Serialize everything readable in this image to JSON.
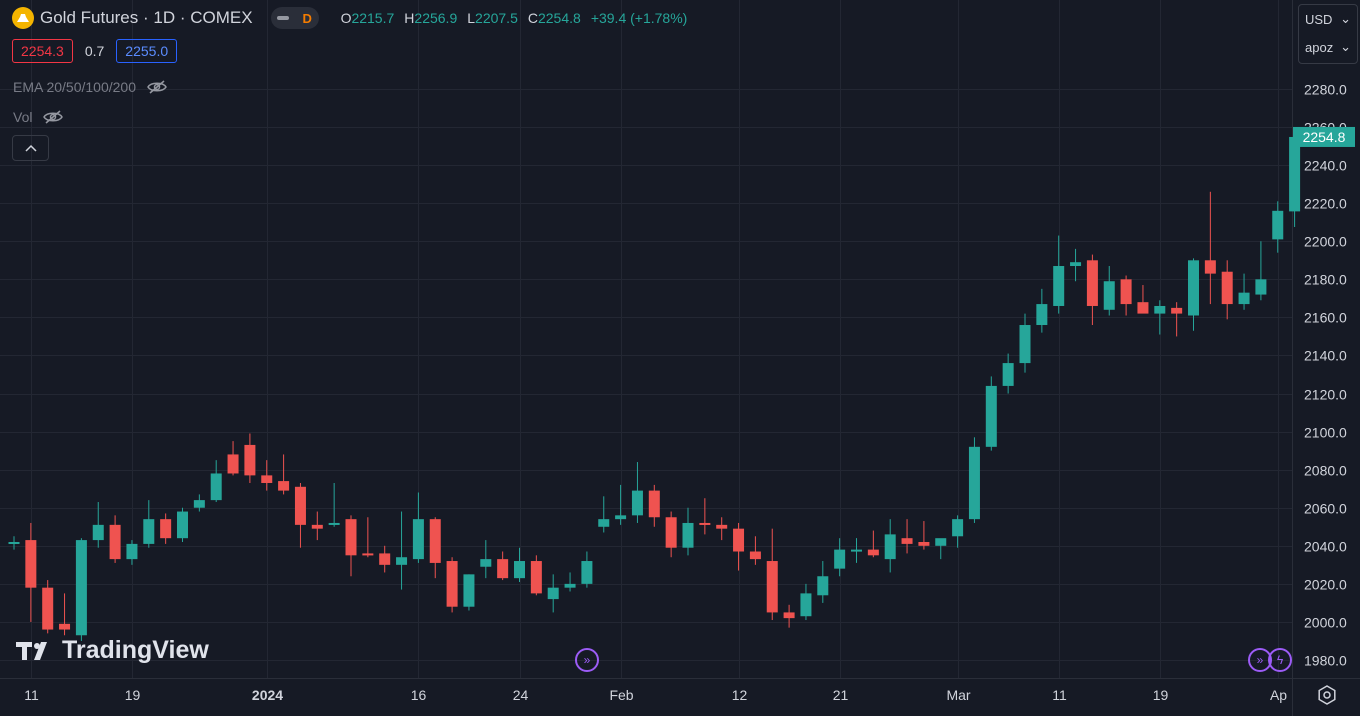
{
  "header": {
    "symbol_title": "Gold Futures · 1D · COMEX",
    "market_status": "D",
    "ohlc": {
      "o_label": "O",
      "o": "2215.7",
      "h_label": "H",
      "h": "2256.9",
      "l_label": "L",
      "l": "2207.5",
      "c_label": "C",
      "c": "2254.8",
      "change": "+39.4 (+1.78%)"
    }
  },
  "quote": {
    "bid": "2254.3",
    "spread": "0.7",
    "ask": "2255.0"
  },
  "indicators": [
    {
      "label": "EMA 20/50/100/200",
      "icon": "eye-off-icon"
    },
    {
      "label": "Vol",
      "icon": "eye-off-icon"
    }
  ],
  "price_scale": {
    "currency": "USD",
    "unit": "apoz"
  },
  "watermark": "TradingView",
  "colors": {
    "up": "#26a69a",
    "down": "#ef5350",
    "background": "#161a25",
    "event": "#9c5cf6"
  },
  "chart_data": {
    "type": "candlestick",
    "title": "Gold Futures · 1D · COMEX",
    "ylim": [
      1970,
      2290
    ],
    "yticks": [
      1980.0,
      2000.0,
      2020.0,
      2040.0,
      2060.0,
      2080.0,
      2100.0,
      2120.0,
      2140.0,
      2160.0,
      2180.0,
      2200.0,
      2220.0,
      2240.0,
      2260.0,
      2280.0
    ],
    "xtick_labels": [
      {
        "label": "11",
        "bar": 1
      },
      {
        "label": "19",
        "bar": 7
      },
      {
        "label": "2024",
        "bar": 15
      },
      {
        "label": "16",
        "bar": 24
      },
      {
        "label": "24",
        "bar": 30
      },
      {
        "label": "Feb",
        "bar": 36
      },
      {
        "label": "12",
        "bar": 43
      },
      {
        "label": "21",
        "bar": 49
      },
      {
        "label": "Mar",
        "bar": 56
      },
      {
        "label": "11",
        "bar": 62
      },
      {
        "label": "19",
        "bar": 68
      },
      {
        "label": "Ap",
        "bar": 75
      }
    ],
    "last_price": 2254.8,
    "candles": [
      {
        "o": 2042,
        "h": 2045,
        "l": 2038,
        "c": 2042
      },
      {
        "o": 2043,
        "h": 2052,
        "l": 2000,
        "c": 2018
      },
      {
        "o": 2018,
        "h": 2022,
        "l": 1994,
        "c": 1996
      },
      {
        "o": 1999,
        "h": 2015,
        "l": 1993,
        "c": 1996
      },
      {
        "o": 1993,
        "h": 2044,
        "l": 1990,
        "c": 2043
      },
      {
        "o": 2043,
        "h": 2063,
        "l": 2039,
        "c": 2051
      },
      {
        "o": 2051,
        "h": 2056,
        "l": 2031,
        "c": 2033
      },
      {
        "o": 2033,
        "h": 2043,
        "l": 2030,
        "c": 2041
      },
      {
        "o": 2041,
        "h": 2064,
        "l": 2039,
        "c": 2054
      },
      {
        "o": 2054,
        "h": 2057,
        "l": 2041,
        "c": 2044
      },
      {
        "o": 2044,
        "h": 2060,
        "l": 2042,
        "c": 2058
      },
      {
        "o": 2060,
        "h": 2067,
        "l": 2058,
        "c": 2064
      },
      {
        "o": 2064,
        "h": 2085,
        "l": 2063,
        "c": 2078
      },
      {
        "o": 2088,
        "h": 2095,
        "l": 2077,
        "c": 2078
      },
      {
        "o": 2093,
        "h": 2099,
        "l": 2073,
        "c": 2077
      },
      {
        "o": 2077,
        "h": 2085,
        "l": 2069,
        "c": 2073
      },
      {
        "o": 2074,
        "h": 2088,
        "l": 2067,
        "c": 2069
      },
      {
        "o": 2071,
        "h": 2073,
        "l": 2039,
        "c": 2051
      },
      {
        "o": 2051,
        "h": 2058,
        "l": 2043,
        "c": 2049
      },
      {
        "o": 2052,
        "h": 2073,
        "l": 2050,
        "c": 2052
      },
      {
        "o": 2054,
        "h": 2056,
        "l": 2024,
        "c": 2035
      },
      {
        "o": 2036,
        "h": 2055,
        "l": 2034,
        "c": 2035
      },
      {
        "o": 2036,
        "h": 2040,
        "l": 2026,
        "c": 2030
      },
      {
        "o": 2030,
        "h": 2058,
        "l": 2017,
        "c": 2034
      },
      {
        "o": 2033,
        "h": 2068,
        "l": 2031,
        "c": 2054
      },
      {
        "o": 2054,
        "h": 2055,
        "l": 2023,
        "c": 2031
      },
      {
        "o": 2032,
        "h": 2034,
        "l": 2005,
        "c": 2008
      },
      {
        "o": 2008,
        "h": 2025,
        "l": 2006,
        "c": 2025
      },
      {
        "o": 2029,
        "h": 2043,
        "l": 2023,
        "c": 2033
      },
      {
        "o": 2033,
        "h": 2037,
        "l": 2022,
        "c": 2023
      },
      {
        "o": 2023,
        "h": 2039,
        "l": 2021,
        "c": 2032
      },
      {
        "o": 2032,
        "h": 2035,
        "l": 2014,
        "c": 2015
      },
      {
        "o": 2012,
        "h": 2025,
        "l": 2005,
        "c": 2018
      },
      {
        "o": 2018,
        "h": 2026,
        "l": 2016,
        "c": 2020
      },
      {
        "o": 2020,
        "h": 2037,
        "l": 2018,
        "c": 2032
      },
      {
        "o": 2050,
        "h": 2066,
        "l": 2047,
        "c": 2054
      },
      {
        "o": 2054,
        "h": 2072,
        "l": 2051,
        "c": 2056
      },
      {
        "o": 2056,
        "h": 2084,
        "l": 2052,
        "c": 2069
      },
      {
        "o": 2069,
        "h": 2072,
        "l": 2050,
        "c": 2055
      },
      {
        "o": 2055,
        "h": 2058,
        "l": 2034,
        "c": 2039
      },
      {
        "o": 2039,
        "h": 2060,
        "l": 2035,
        "c": 2052
      },
      {
        "o": 2052,
        "h": 2065,
        "l": 2046,
        "c": 2051
      },
      {
        "o": 2051,
        "h": 2055,
        "l": 2043,
        "c": 2049
      },
      {
        "o": 2049,
        "h": 2052,
        "l": 2027,
        "c": 2037
      },
      {
        "o": 2037,
        "h": 2045,
        "l": 2030,
        "c": 2033
      },
      {
        "o": 2032,
        "h": 2049,
        "l": 2001,
        "c": 2005
      },
      {
        "o": 2005,
        "h": 2009,
        "l": 1997,
        "c": 2002
      },
      {
        "o": 2003,
        "h": 2020,
        "l": 2001,
        "c": 2015
      },
      {
        "o": 2014,
        "h": 2032,
        "l": 2010,
        "c": 2024
      },
      {
        "o": 2028,
        "h": 2044,
        "l": 2024,
        "c": 2038
      },
      {
        "o": 2037,
        "h": 2044,
        "l": 2031,
        "c": 2038
      },
      {
        "o": 2038,
        "h": 2048,
        "l": 2034,
        "c": 2035
      },
      {
        "o": 2033,
        "h": 2054,
        "l": 2026,
        "c": 2046
      },
      {
        "o": 2044,
        "h": 2054,
        "l": 2036,
        "c": 2041
      },
      {
        "o": 2042,
        "h": 2053,
        "l": 2038,
        "c": 2040
      },
      {
        "o": 2040,
        "h": 2042,
        "l": 2033,
        "c": 2044
      },
      {
        "o": 2045,
        "h": 2056,
        "l": 2039,
        "c": 2054
      },
      {
        "o": 2054,
        "h": 2097,
        "l": 2052,
        "c": 2092
      },
      {
        "o": 2092,
        "h": 2129,
        "l": 2090,
        "c": 2124
      },
      {
        "o": 2124,
        "h": 2141,
        "l": 2120,
        "c": 2136
      },
      {
        "o": 2136,
        "h": 2162,
        "l": 2131,
        "c": 2156
      },
      {
        "o": 2156,
        "h": 2175,
        "l": 2152,
        "c": 2167
      },
      {
        "o": 2166,
        "h": 2203,
        "l": 2162,
        "c": 2187
      },
      {
        "o": 2187,
        "h": 2196,
        "l": 2179,
        "c": 2189
      },
      {
        "o": 2190,
        "h": 2193,
        "l": 2156,
        "c": 2166
      },
      {
        "o": 2164,
        "h": 2187,
        "l": 2161,
        "c": 2179
      },
      {
        "o": 2180,
        "h": 2182,
        "l": 2161,
        "c": 2167
      },
      {
        "o": 2168,
        "h": 2177,
        "l": 2164,
        "c": 2162
      },
      {
        "o": 2162,
        "h": 2169,
        "l": 2151,
        "c": 2166
      },
      {
        "o": 2165,
        "h": 2168,
        "l": 2150,
        "c": 2162
      },
      {
        "o": 2161,
        "h": 2191,
        "l": 2153,
        "c": 2190
      },
      {
        "o": 2190,
        "h": 2226,
        "l": 2167,
        "c": 2183
      },
      {
        "o": 2184,
        "h": 2190,
        "l": 2159,
        "c": 2167
      },
      {
        "o": 2167,
        "h": 2183,
        "l": 2164,
        "c": 2173
      },
      {
        "o": 2172,
        "h": 2200,
        "l": 2169,
        "c": 2180
      },
      {
        "o": 2201,
        "h": 2221,
        "l": 2194,
        "c": 2216
      },
      {
        "o": 2215.7,
        "h": 2256.9,
        "l": 2207.5,
        "c": 2254.8
      }
    ],
    "events": [
      {
        "bar": 35,
        "icon": "fast-forward-icon"
      },
      {
        "bar": 74,
        "icon": "fast-forward-icon"
      },
      {
        "bar": 75,
        "icon": "lightning-icon"
      }
    ]
  }
}
